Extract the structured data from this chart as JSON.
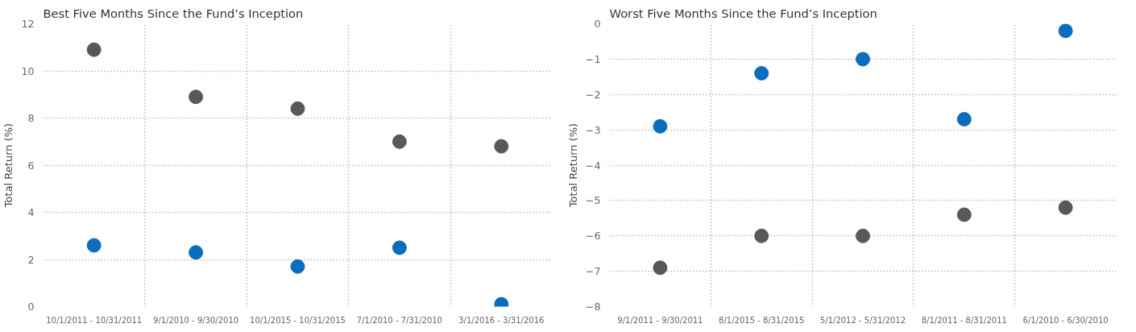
{
  "chart_data": [
    {
      "type": "scatter",
      "title": "Best Five Months Since the Fund’s Inception",
      "ylabel": "Total Return (%)",
      "categories": [
        "10/1/2011 - 10/31/2011",
        "9/1/2010 - 9/30/2010",
        "10/1/2015 - 10/31/2015",
        "7/1/2010 - 7/31/2010",
        "3/1/2016 - 3/31/2016"
      ],
      "ylim": [
        0,
        12
      ],
      "yticks": [
        0,
        2,
        4,
        6,
        8,
        10,
        12
      ],
      "grid": true,
      "marker": "circle",
      "series": [
        {
          "color": "#58585a",
          "values": [
            10.9,
            8.9,
            8.4,
            7.0,
            6.8
          ]
        },
        {
          "color": "#0a6ebd",
          "values": [
            2.6,
            2.3,
            1.7,
            2.5,
            0.1
          ]
        }
      ]
    },
    {
      "type": "scatter",
      "title": "Worst Five Months Since the Fund’s Inception",
      "ylabel": "Total Return (%)",
      "categories": [
        "9/1/2011 - 9/30/2011",
        "8/1/2015 - 8/31/2015",
        "5/1/2012 - 5/31/2012",
        "8/1/2011 - 8/31/2011",
        "6/1/2010 - 6/30/2010"
      ],
      "ylim": [
        -8,
        0
      ],
      "yticks": [
        -8,
        -7,
        -6,
        -5,
        -4,
        -3,
        -2,
        -1,
        0
      ],
      "grid": true,
      "marker": "circle",
      "series": [
        {
          "color": "#58585a",
          "values": [
            -6.9,
            -6.0,
            -6.0,
            -5.4,
            -5.2
          ]
        },
        {
          "color": "#0a6ebd",
          "values": [
            -2.9,
            -1.4,
            -1.0,
            -2.7,
            -0.2
          ]
        }
      ]
    }
  ]
}
